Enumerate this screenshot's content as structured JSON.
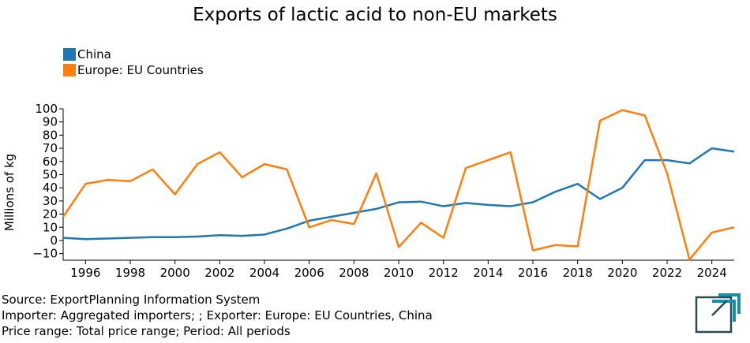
{
  "title": "Exports of lactic acid to non-EU markets",
  "legend": [
    {
      "label": "China",
      "color": "#1f77b4"
    },
    {
      "label": "Europe: EU Countries",
      "color": "#ff7f0e"
    }
  ],
  "source": {
    "line1": "Source: ExportPlanning Information System",
    "line2": "Importer: Aggregated importers; ; Exporter: Europe: EU Countries, China",
    "line3": "Price range: Total price range; Period: All periods"
  },
  "colors": {
    "china": "#1f77b4",
    "eu": "#ff7f0e",
    "logo": "#1a8fa8",
    "logo_dark": "#2a4a5a"
  },
  "chart_data": {
    "type": "line",
    "title": "Exports of lactic acid to non-EU markets",
    "xlabel": "",
    "ylabel": "Millions of kg",
    "xlim": [
      1995,
      2025
    ],
    "ylim": [
      -15,
      100
    ],
    "yticks": [
      -10,
      0,
      10,
      20,
      30,
      40,
      50,
      60,
      70,
      80,
      90,
      100
    ],
    "ytick_labels": [
      "−10",
      "0",
      "10",
      "20",
      "30",
      "40",
      "50",
      "60",
      "70",
      "80",
      "90",
      "100"
    ],
    "xticks": [
      1996,
      1998,
      2000,
      2002,
      2004,
      2006,
      2008,
      2010,
      2012,
      2014,
      2016,
      2018,
      2020,
      2022,
      2024
    ],
    "legend_position": "top-left",
    "grid": false,
    "x": [
      1995,
      1996,
      1997,
      1998,
      1999,
      2000,
      2001,
      2002,
      2003,
      2004,
      2005,
      2006,
      2007,
      2008,
      2009,
      2010,
      2011,
      2012,
      2013,
      2014,
      2015,
      2016,
      2017,
      2018,
      2019,
      2020,
      2021,
      2022,
      2023,
      2024,
      2025
    ],
    "series": [
      {
        "name": "China",
        "color": "#1f77b4",
        "values": [
          2,
          1,
          1.5,
          2,
          2.5,
          2.5,
          3,
          4,
          3.5,
          4.5,
          9,
          15,
          18,
          21,
          24,
          29,
          29.5,
          26,
          28.5,
          27,
          26,
          29,
          37,
          43,
          31.5,
          40,
          61,
          61,
          58.5,
          70,
          67.5
        ]
      },
      {
        "name": "Europe: EU Countries",
        "color": "#ff7f0e",
        "values": [
          18,
          43,
          46,
          45,
          54,
          35,
          58,
          67,
          48,
          58,
          54,
          10,
          15.5,
          12.5,
          51,
          -5,
          13.5,
          2,
          55,
          61,
          67,
          -7.5,
          -3.5,
          -4.5,
          91,
          99,
          95,
          51,
          -14.5,
          6,
          10
        ]
      }
    ]
  }
}
